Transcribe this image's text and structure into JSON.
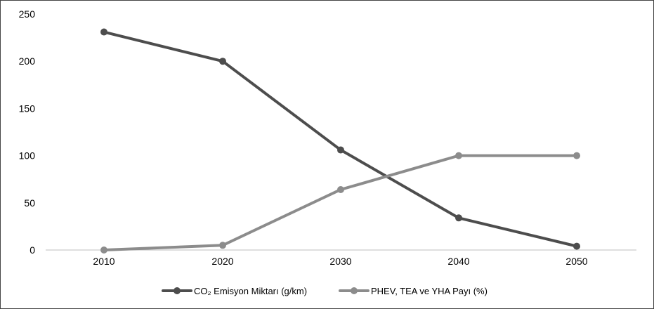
{
  "chart_data": {
    "type": "line",
    "title": "",
    "xlabel": "",
    "ylabel": "",
    "categories": [
      "2010",
      "2020",
      "2030",
      "2040",
      "2050"
    ],
    "y_ticks": [
      "0",
      "50",
      "100",
      "150",
      "200",
      "250"
    ],
    "ylim": [
      0,
      250
    ],
    "grid": false,
    "legend_position": "bottom",
    "series": [
      {
        "name": "CO₂ Emisyon Miktarı (g/km)",
        "values": [
          231,
          200,
          106,
          34,
          4
        ],
        "color": "#4d4d4d"
      },
      {
        "name": "PHEV, TEA ve YHA Payı  (%)",
        "values": [
          0,
          5,
          64,
          100,
          100
        ],
        "color": "#8c8c8c"
      }
    ]
  }
}
